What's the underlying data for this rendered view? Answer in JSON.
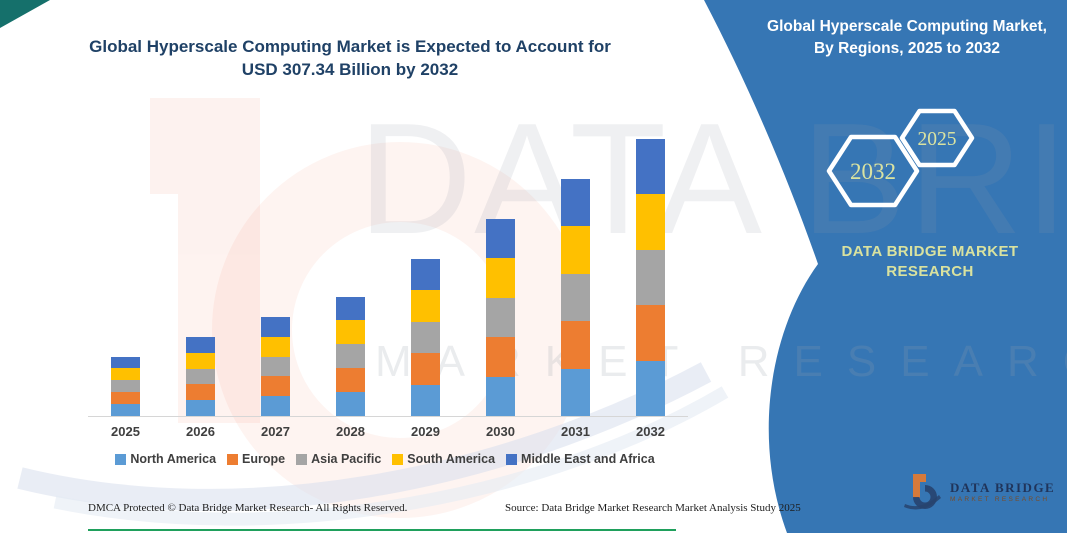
{
  "page": {
    "main_title": "Global Hyperscale Computing Market is Expected to Account for USD 307.34 Billion by 2032"
  },
  "side_panel": {
    "heading": "Global Hyperscale Computing Market, By Regions, 2025 to 2032",
    "hexagon_large_label": "2032",
    "hexagon_small_label": "2025",
    "brand": "DATA BRIDGE MARKET RESEARCH",
    "panel_color": "#3676B4",
    "hex_text_color": "#DAE3A1"
  },
  "watermark": {
    "text_large": "DATA BRIDGE",
    "text_spaced": "MARKET RESEARCH"
  },
  "logo": {
    "brand_top": "DATA BRIDGE",
    "brand_bottom": "MARKET RESEARCH"
  },
  "footer": {
    "left": "DMCA Protected © Data Bridge Market Research-  All Rights Reserved.",
    "right": "Source: Data Bridge Market Research  Market Analysis Study 2025"
  },
  "chart_data": {
    "type": "bar",
    "stacked": true,
    "title": "Global Hyperscale Computing Market is Expected to Account for USD 307.34 Billion by 2032",
    "unit": "USD Billion",
    "categories": [
      "2025",
      "2026",
      "2027",
      "2028",
      "2029",
      "2030",
      "2031",
      "2032"
    ],
    "series": [
      {
        "name": "North America",
        "color": "#5B9BD5",
        "values": [
          13.2,
          17.6,
          22.0,
          26.5,
          35.0,
          43.9,
          52.8,
          61.5
        ]
      },
      {
        "name": "Europe",
        "color": "#ED7D31",
        "values": [
          13.2,
          17.6,
          22.0,
          26.5,
          35.0,
          43.9,
          52.8,
          61.5
        ]
      },
      {
        "name": "Asia Pacific",
        "color": "#A5A5A5",
        "values": [
          13.2,
          17.6,
          22.0,
          26.5,
          35.0,
          43.9,
          52.8,
          61.5
        ]
      },
      {
        "name": "South America",
        "color": "#FFC000",
        "values": [
          13.2,
          17.6,
          22.0,
          26.5,
          35.0,
          43.9,
          52.8,
          61.5
        ]
      },
      {
        "name": "Middle East and Africa",
        "color": "#4472C4",
        "values": [
          13.2,
          17.6,
          22.0,
          26.5,
          35.0,
          43.9,
          52.8,
          61.5
        ]
      }
    ],
    "totals": [
      66.0,
      88.0,
      110.0,
      132.5,
      175.0,
      219.5,
      264.0,
      307.34
    ],
    "ylim": [
      0,
      310
    ],
    "grid": false,
    "y_axis_visible": false,
    "legend_position": "bottom"
  }
}
